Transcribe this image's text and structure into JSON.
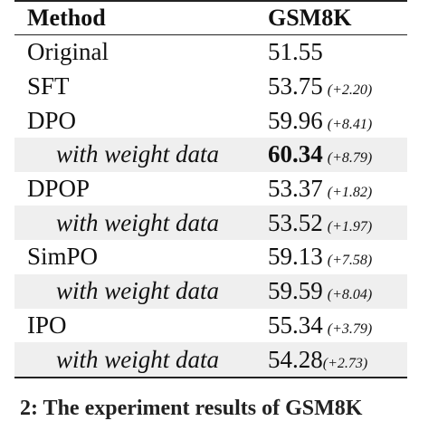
{
  "table": {
    "header": {
      "method": "Method",
      "score": "GSM8K"
    },
    "rows": [
      {
        "method": "Original",
        "score": "51.55",
        "delta": "",
        "sub": false,
        "bold": false
      },
      {
        "method": "SFT",
        "score": "53.75",
        "delta": "(+2.20)",
        "sub": false,
        "bold": false
      },
      {
        "method": "DPO",
        "score": "59.96",
        "delta": "(+8.41)",
        "sub": false,
        "bold": false
      },
      {
        "method": "with weight data",
        "score": "60.34",
        "delta": "(+8.79)",
        "sub": true,
        "bold": true
      },
      {
        "method": "DPOP",
        "score": "53.37",
        "delta": "(+1.82)",
        "sub": false,
        "bold": false
      },
      {
        "method": "with weight data",
        "score": "53.52",
        "delta": "(+1.97)",
        "sub": true,
        "bold": false
      },
      {
        "method": "SimPO",
        "score": "59.13",
        "delta": "(+7.58)",
        "sub": false,
        "bold": false
      },
      {
        "method": "with weight data",
        "score": "59.59",
        "delta": "(+8.04)",
        "sub": true,
        "bold": false
      },
      {
        "method": "IPO",
        "score": "55.34",
        "delta": "(+3.79)",
        "sub": false,
        "bold": false
      },
      {
        "method": "with weight data",
        "score": "54.28",
        "delta": "(+2.73)",
        "sub": true,
        "bold": false
      }
    ]
  },
  "caption_fragment": "2: The experiment results of GSM8K"
}
